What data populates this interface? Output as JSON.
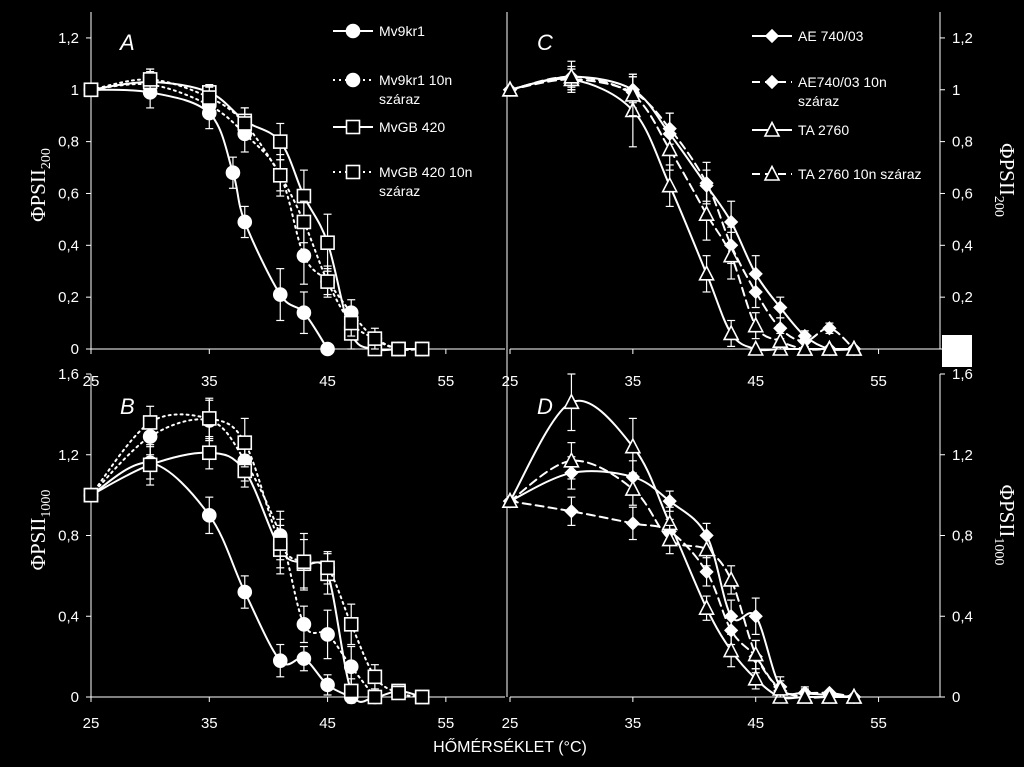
{
  "figure": {
    "xlabel": "HŐMÉRSÉKLET (°C)",
    "ylabel_top": {
      "main": "ΦPSII",
      "sub": "200"
    },
    "ylabel_bottom": {
      "main": "ΦPSII",
      "sub": "1000"
    }
  },
  "styles": {
    "color": "#ffffff",
    "background": "#000000"
  },
  "chart_data": [
    {
      "id": "A",
      "type": "line",
      "panel_label": "A",
      "xlim": [
        25,
        60
      ],
      "ylim": [
        0,
        1.3
      ],
      "xticks": [
        25,
        35,
        45,
        55
      ],
      "yticks": [
        0,
        0.2,
        0.4,
        0.6,
        0.8,
        1,
        1.2
      ],
      "xtick_labels": [
        "25",
        "35",
        "45",
        "55"
      ],
      "ytick_labels": [
        "0",
        "0,2",
        "0,4",
        "0,6",
        "0,8",
        "1",
        "1,2"
      ],
      "legend": {
        "position": "top-right"
      },
      "series": [
        {
          "name": "Mv9kr1",
          "marker": "circle",
          "fill": "solid",
          "dash": "solid",
          "x": [
            25,
            30,
            35,
            37,
            38,
            41,
            43,
            45
          ],
          "y": [
            1.0,
            0.99,
            0.91,
            0.68,
            0.49,
            0.21,
            0.14,
            0.0
          ],
          "err": [
            0,
            0.06,
            0.06,
            0.06,
            0.06,
            0.1,
            0.08,
            0
          ]
        },
        {
          "name": "Mv9kr1 10n száraz",
          "marker": "circle",
          "fill": "solid",
          "dash": "dotted",
          "x": [
            25,
            30,
            35,
            38,
            41,
            43,
            45,
            47,
            49,
            51,
            53
          ],
          "y": [
            1.0,
            1.02,
            0.94,
            0.83,
            0.67,
            0.36,
            0.26,
            0.14,
            0.04,
            0.0,
            0.0
          ],
          "err": [
            0,
            0.05,
            0.05,
            0.07,
            0.06,
            0.11,
            0.05,
            0.05,
            0,
            0,
            0
          ]
        },
        {
          "name": "MvGB 420",
          "marker": "square",
          "fill": "open",
          "dash": "solid",
          "x": [
            25,
            30,
            35,
            38,
            41,
            43,
            45,
            47,
            49,
            51,
            53
          ],
          "y": [
            1.0,
            1.03,
            0.99,
            0.88,
            0.8,
            0.59,
            0.41,
            0.06,
            0.0,
            0.0,
            0.0
          ],
          "err": [
            0,
            0.05,
            0.03,
            0.05,
            0.07,
            0.1,
            0.11,
            0.06,
            0,
            0,
            0
          ]
        },
        {
          "name": "MvGB 420 10n száraz",
          "marker": "square",
          "fill": "open",
          "dash": "dotted",
          "x": [
            25,
            30,
            35,
            38,
            41,
            43,
            45,
            47,
            49,
            51,
            53
          ],
          "y": [
            1.0,
            1.04,
            0.97,
            0.87,
            0.67,
            0.49,
            0.26,
            0.1,
            0.04,
            0.0,
            0.0
          ],
          "err": [
            0,
            0.04,
            0.04,
            0.06,
            0.08,
            0.08,
            0.06,
            0.05,
            0.04,
            0,
            0
          ]
        }
      ]
    },
    {
      "id": "B",
      "type": "line",
      "panel_label": "B",
      "xlim": [
        25,
        60
      ],
      "ylim": [
        0,
        1.6
      ],
      "xticks": [
        25,
        35,
        45,
        55
      ],
      "yticks": [
        0,
        0.4,
        0.8,
        1.2,
        1.6
      ],
      "xtick_labels": [
        "25",
        "35",
        "45",
        "55"
      ],
      "ytick_labels": [
        "0",
        "0,4",
        "0,8",
        "1,2",
        "1,6"
      ],
      "series": [
        {
          "name": "Mv9kr1",
          "marker": "circle",
          "fill": "solid",
          "dash": "solid",
          "x": [
            25,
            30,
            35,
            38,
            41,
            43,
            45,
            47
          ],
          "y": [
            1.0,
            1.16,
            0.9,
            0.52,
            0.18,
            0.19,
            0.06,
            0.0
          ],
          "err": [
            0,
            0.08,
            0.09,
            0.08,
            0.08,
            0.06,
            0.05,
            0
          ]
        },
        {
          "name": "Mv9kr1 10n száraz",
          "marker": "circle",
          "fill": "solid",
          "dash": "dotted",
          "x": [
            25,
            30,
            35,
            38,
            41,
            43,
            45,
            47,
            49
          ],
          "y": [
            1.0,
            1.29,
            1.37,
            1.17,
            0.8,
            0.36,
            0.31,
            0.15,
            0.0
          ],
          "err": [
            0,
            0.09,
            0.1,
            0.1,
            0.12,
            0.09,
            0.12,
            0.1,
            0
          ]
        },
        {
          "name": "MvGB 420",
          "marker": "square",
          "fill": "open",
          "dash": "solid",
          "x": [
            25,
            30,
            35,
            38,
            41,
            43,
            45,
            47,
            49,
            51,
            53
          ],
          "y": [
            1.0,
            1.15,
            1.21,
            1.12,
            0.73,
            0.66,
            0.61,
            0.03,
            0.0,
            0.03,
            0.0
          ],
          "err": [
            0,
            0.1,
            0.08,
            0.08,
            0.12,
            0.12,
            0.1,
            0.06,
            0,
            0.03,
            0
          ]
        },
        {
          "name": "MvGB 420 10n száraz",
          "marker": "square",
          "fill": "open",
          "dash": "dotted",
          "x": [
            25,
            30,
            35,
            38,
            41,
            43,
            45,
            47,
            49,
            51,
            53
          ],
          "y": [
            1.0,
            1.36,
            1.38,
            1.26,
            0.76,
            0.67,
            0.64,
            0.36,
            0.1,
            0.02,
            0.0
          ],
          "err": [
            0,
            0.08,
            0.1,
            0.12,
            0.12,
            0.14,
            0.08,
            0.1,
            0.06,
            0.02,
            0
          ]
        }
      ]
    },
    {
      "id": "C",
      "type": "line",
      "panel_label": "C",
      "xlim": [
        25,
        60
      ],
      "ylim": [
        0,
        1.3
      ],
      "xticks": [
        25,
        35,
        45,
        55
      ],
      "yticks": [
        0,
        0.2,
        0.4,
        0.6,
        0.8,
        1,
        1.2
      ],
      "xtick_labels": [
        "25",
        "35",
        "45",
        "55"
      ],
      "ytick_labels": [
        "",
        "0,2",
        "0,4",
        "0,6",
        "0,8",
        "1",
        "1,2"
      ],
      "legend": {
        "position": "top-right"
      },
      "series": [
        {
          "name": "AE 740/03",
          "marker": "diamond",
          "fill": "solid",
          "dash": "solid",
          "x": [
            25,
            30,
            35,
            38,
            41,
            43,
            45,
            47,
            49,
            51,
            53
          ],
          "y": [
            1.0,
            1.05,
            1.0,
            0.83,
            0.63,
            0.49,
            0.29,
            0.16,
            0.05,
            0.0,
            0.0
          ],
          "err": [
            0,
            0.04,
            0.05,
            0.08,
            0.06,
            0.08,
            0.07,
            0.04,
            0.02,
            0,
            0
          ]
        },
        {
          "name": "AE740/03 10n száraz",
          "marker": "diamond",
          "fill": "solid",
          "dash": "dashed",
          "x": [
            25,
            30,
            35,
            38,
            41,
            43,
            45,
            47,
            49,
            51,
            53
          ],
          "y": [
            1.0,
            1.04,
            0.99,
            0.85,
            0.64,
            0.4,
            0.22,
            0.08,
            0.03,
            0.08,
            0.0
          ],
          "err": [
            0,
            0.04,
            0.06,
            0.06,
            0.08,
            0.07,
            0.06,
            0.04,
            0.02,
            0.02,
            0
          ]
        },
        {
          "name": "TA 2760",
          "marker": "triangle",
          "fill": "open",
          "dash": "solid",
          "x": [
            25,
            30,
            35,
            38,
            41,
            43,
            45,
            47,
            49,
            51,
            53
          ],
          "y": [
            1.0,
            1.04,
            0.92,
            0.63,
            0.29,
            0.06,
            0.0,
            0.0,
            0.0,
            0.0,
            0.0
          ],
          "err": [
            0,
            0.04,
            0.14,
            0.08,
            0.07,
            0.05,
            0,
            0,
            0,
            0,
            0
          ]
        },
        {
          "name": "TA 2760 10n száraz",
          "marker": "triangle",
          "fill": "open",
          "dash": "dashed",
          "x": [
            25,
            30,
            35,
            38,
            41,
            43,
            45,
            47,
            49,
            51,
            53
          ],
          "y": [
            1.0,
            1.05,
            0.98,
            0.77,
            0.52,
            0.36,
            0.09,
            0.03,
            0.0,
            0.0,
            0.0
          ],
          "err": [
            0,
            0.06,
            0.08,
            0.08,
            0.1,
            0.09,
            0.05,
            0.03,
            0,
            0,
            0
          ]
        }
      ]
    },
    {
      "id": "D",
      "type": "line",
      "panel_label": "D",
      "xlim": [
        25,
        60
      ],
      "ylim": [
        0,
        1.6
      ],
      "xticks": [
        25,
        35,
        45,
        55
      ],
      "yticks": [
        0,
        0.4,
        0.8,
        1.2,
        1.6
      ],
      "xtick_labels": [
        "25",
        "35",
        "45",
        "55"
      ],
      "ytick_labels": [
        "0",
        "0,4",
        "0,8",
        "1,2",
        "1,6"
      ],
      "series": [
        {
          "name": "AE 740/03",
          "marker": "diamond",
          "fill": "solid",
          "dash": "solid",
          "x": [
            25,
            30,
            35,
            38,
            41,
            43,
            45,
            47,
            49,
            51,
            53
          ],
          "y": [
            0.97,
            1.11,
            1.09,
            0.97,
            0.8,
            0.4,
            0.4,
            0.05,
            0.02,
            0.01,
            0.0
          ],
          "err": [
            0,
            0.08,
            0.08,
            0.05,
            0.06,
            0.08,
            0.09,
            0.05,
            0.03,
            0,
            0
          ]
        },
        {
          "name": "AE740/03 10n száraz",
          "marker": "diamond",
          "fill": "solid",
          "dash": "dashed",
          "x": [
            25,
            30,
            35,
            38,
            41,
            43,
            45,
            47,
            49,
            51,
            53
          ],
          "y": [
            0.97,
            0.92,
            0.86,
            0.82,
            0.62,
            0.33,
            0.2,
            0.03,
            0.02,
            0.02,
            0.0
          ],
          "err": [
            0,
            0.07,
            0.08,
            0.06,
            0.07,
            0.07,
            0.08,
            0.03,
            0.02,
            0,
            0
          ]
        },
        {
          "name": "TA 2760",
          "marker": "triangle",
          "fill": "open",
          "dash": "solid",
          "x": [
            25,
            30,
            35,
            38,
            41,
            43,
            45,
            47,
            49,
            51,
            53
          ],
          "y": [
            0.97,
            1.46,
            1.24,
            0.86,
            0.44,
            0.23,
            0.09,
            0.0,
            0.0,
            0.0,
            0.0
          ],
          "err": [
            0,
            0.14,
            0.14,
            0.08,
            0.06,
            0.08,
            0.05,
            0,
            0,
            0,
            0
          ]
        },
        {
          "name": "TA 2760 10n száraz",
          "marker": "triangle",
          "fill": "open",
          "dash": "dashed",
          "x": [
            25,
            30,
            35,
            38,
            41,
            43,
            45,
            47,
            49,
            51,
            53
          ],
          "y": [
            0.97,
            1.17,
            1.03,
            0.78,
            0.73,
            0.58,
            0.21,
            0.04,
            0.0,
            0.0,
            0.0
          ],
          "err": [
            0,
            0.09,
            0.08,
            0.07,
            0.08,
            0.07,
            0.07,
            0.04,
            0.02,
            0,
            0
          ]
        }
      ]
    }
  ],
  "legends": {
    "left": [
      "Mv9kr1",
      "Mv9kr1 10n száraz",
      "MvGB 420",
      "MvGB 420 10n száraz"
    ],
    "right": [
      "AE 740/03",
      "AE740/03 10n száraz",
      "TA 2760",
      "TA 2760 10n száraz"
    ]
  }
}
